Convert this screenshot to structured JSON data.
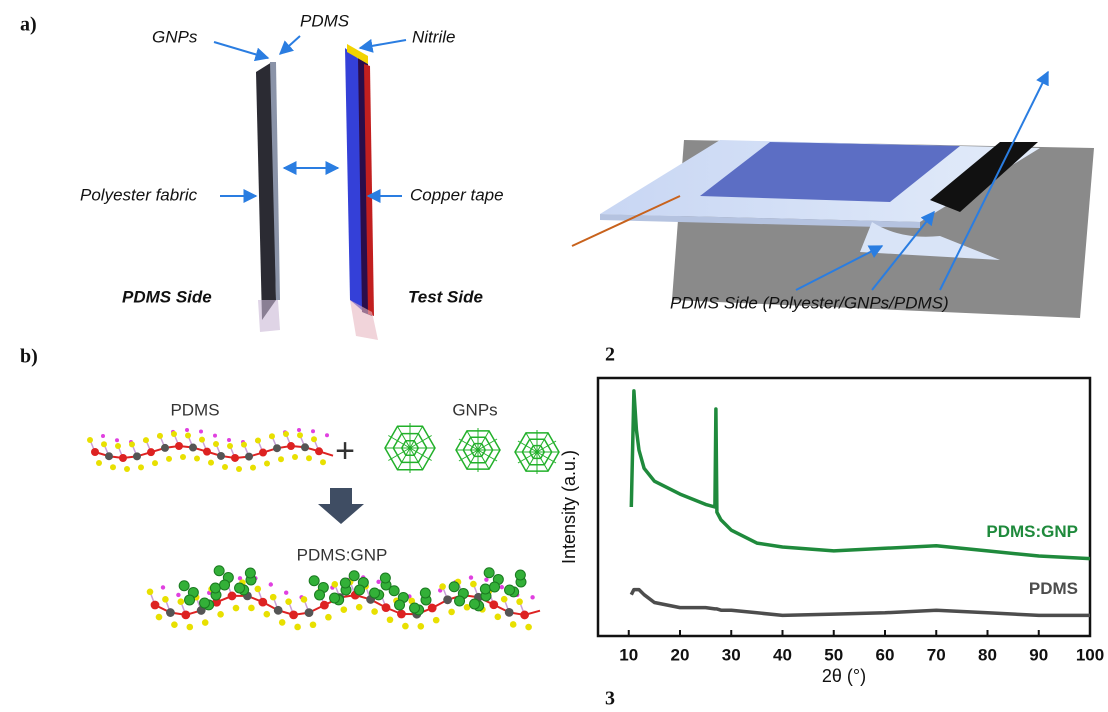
{
  "panel_a": {
    "label": "a)",
    "gnps": "GNPs",
    "pdms": "PDMS",
    "nitrile": "Nitrile",
    "polyester": "Polyester fabric",
    "copper": "Copper tape",
    "pdms_side": "PDMS Side",
    "test_side": "Test Side",
    "sheet_caption": "PDMS Side (Polyester/GNPs/PDMS)"
  },
  "panel_b": {
    "label": "b)",
    "pdms": "PDMS",
    "plus": "+",
    "gnps": "GNPs",
    "composite": "PDMS:GNP"
  },
  "annotations": [
    "2",
    "3"
  ],
  "chart_data": {
    "type": "line",
    "xlabel": "2θ (°)",
    "ylabel": "Intensity (a.u.)",
    "x": [
      10.5,
      11,
      11.5,
      12,
      13,
      15,
      20,
      25,
      26.8,
      27,
      27.2,
      28,
      30,
      35,
      40,
      50,
      60,
      70,
      80,
      90,
      100
    ],
    "series": [
      {
        "name": "PDMS:GNP",
        "color": "#1f8a3c",
        "values": [
          50,
          95,
          80,
          72,
          65,
          60,
          55,
          51,
          50,
          88,
          48,
          45,
          41,
          36,
          34.5,
          33,
          34,
          35,
          33,
          31,
          30
        ]
      },
      {
        "name": "PDMS",
        "color": "#4d4d4d",
        "values": [
          16,
          18,
          18,
          18,
          16,
          13,
          11,
          11,
          10.5,
          10.5,
          10.5,
          10,
          10,
          9,
          8,
          8.5,
          9,
          10,
          9,
          8,
          8
        ]
      }
    ],
    "xlim": [
      4,
      100
    ],
    "ylim": [
      0,
      100
    ],
    "xticks": [
      10,
      20,
      30,
      40,
      50,
      60,
      70,
      80,
      90,
      100
    ]
  }
}
